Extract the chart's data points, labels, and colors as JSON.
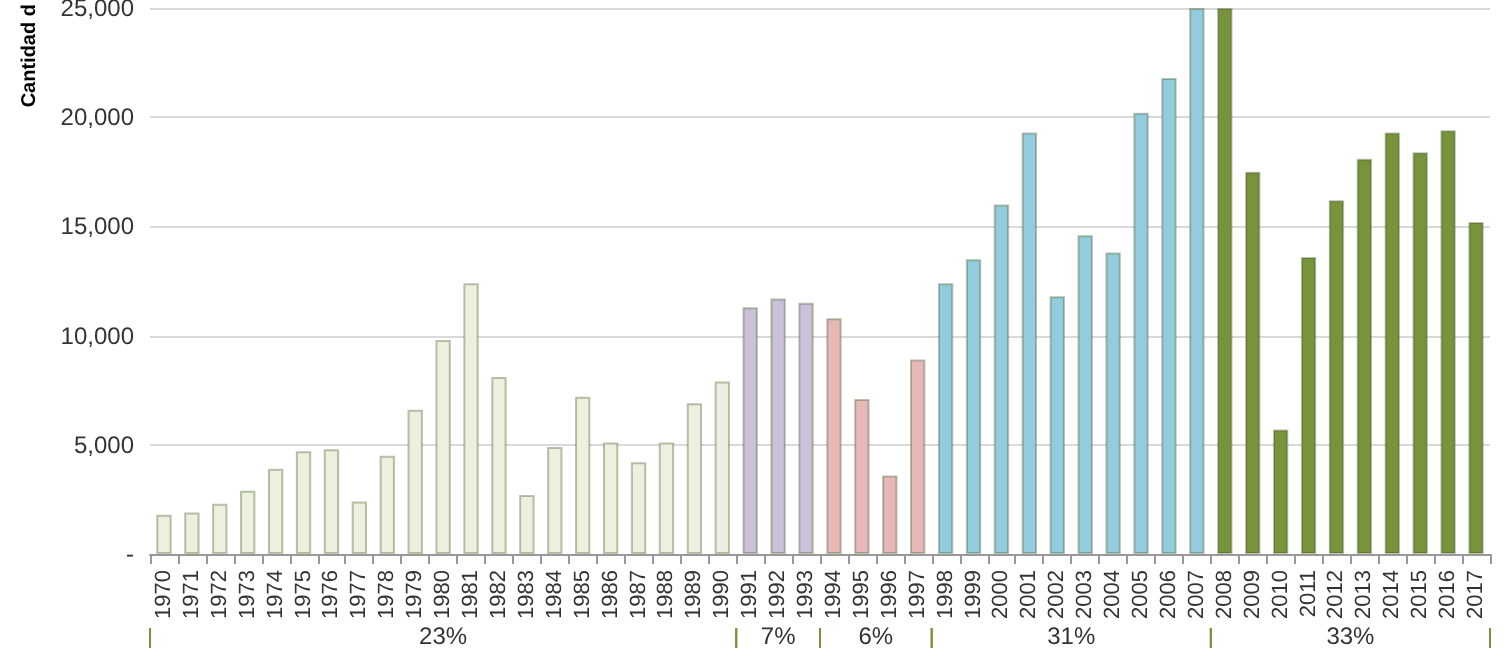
{
  "chart_data": {
    "type": "bar",
    "ylabel": "Cantidad d",
    "categories": [
      "1970",
      "1971",
      "1972",
      "1973",
      "1974",
      "1975",
      "1976",
      "1977",
      "1978",
      "1979",
      "1980",
      "1981",
      "1982",
      "1983",
      "1984",
      "1985",
      "1986",
      "1987",
      "1988",
      "1989",
      "1990",
      "1991",
      "1992",
      "1993",
      "1994",
      "1995",
      "1996",
      "1997",
      "1998",
      "1999",
      "2000",
      "2001",
      "2002",
      "2003",
      "2004",
      "2005",
      "2006",
      "2007",
      "2008",
      "2009",
      "2010",
      "2011",
      "2012",
      "2013",
      "2014",
      "2015",
      "2016",
      "2017"
    ],
    "values": [
      1800,
      1900,
      2300,
      2900,
      3900,
      4700,
      4800,
      2400,
      4500,
      6600,
      9800,
      12400,
      8100,
      2700,
      4900,
      7200,
      5100,
      4200,
      5100,
      6900,
      7900,
      11300,
      11700,
      11500,
      10800,
      7100,
      3600,
      8900,
      12400,
      13500,
      16000,
      19300,
      11800,
      14600,
      13800,
      20200,
      21800,
      25000,
      25000,
      17500,
      5700,
      13600,
      16200,
      18100,
      19300,
      18400,
      19400,
      15200
    ],
    "colors": [
      "#ebf1de",
      "#ebf1de",
      "#ebf1de",
      "#ebf1de",
      "#ebf1de",
      "#ebf1de",
      "#ebf1de",
      "#ebf1de",
      "#ebf1de",
      "#ebf1de",
      "#ebf1de",
      "#ebf1de",
      "#ebf1de",
      "#ebf1de",
      "#ebf1de",
      "#ebf1de",
      "#ebf1de",
      "#ebf1de",
      "#ebf1de",
      "#ebf1de",
      "#ebf1de",
      "#ccc1da",
      "#ccc1da",
      "#ccc1da",
      "#e6b9b8",
      "#e6b9b8",
      "#e6b9b8",
      "#e6b9b8",
      "#93cddd",
      "#93cddd",
      "#93cddd",
      "#93cddd",
      "#93cddd",
      "#93cddd",
      "#93cddd",
      "#93cddd",
      "#93cddd",
      "#93cddd",
      "#77933c",
      "#77933c",
      "#77933c",
      "#77933c",
      "#77933c",
      "#77933c",
      "#77933c",
      "#77933c",
      "#77933c",
      "#77933c"
    ],
    "ylim": [
      0,
      25000
    ],
    "yticks": [
      {
        "value": 0,
        "label": "-"
      },
      {
        "value": 5000,
        "label": "5,000"
      },
      {
        "value": 10000,
        "label": "10,000"
      },
      {
        "value": 15000,
        "label": "15,000"
      },
      {
        "value": 20000,
        "label": "20,000"
      },
      {
        "value": 25000,
        "label": "25,000"
      }
    ],
    "grid": "y",
    "annotations": [
      "23%",
      "7%",
      "6%",
      "31%",
      "33%"
    ]
  }
}
